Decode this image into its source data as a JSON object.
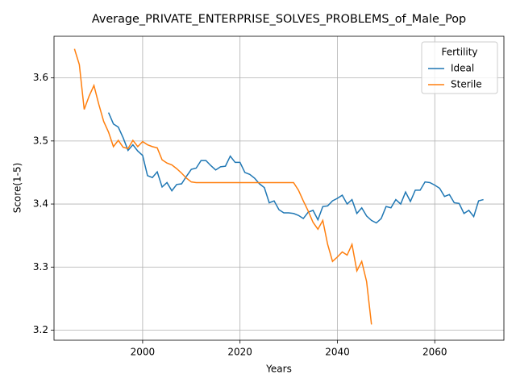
{
  "chart_data": {
    "type": "line",
    "title": "Average_PRIVATE_ENTERPRISE_SOLVES_PROBLEMS_of_Male_Pop",
    "x_label": "Years",
    "y_label": "Score(1-5)",
    "legend_title": "Fertility",
    "legend": "upper right",
    "grid": true,
    "xlim": [
      1981.8,
      2074.2
    ],
    "xticks": [
      2000,
      2020,
      2040,
      2060
    ],
    "ylim": [
      3.184,
      3.666
    ],
    "yticks": [
      3.2,
      3.3,
      3.4,
      3.5,
      3.6
    ],
    "series": [
      {
        "name": "Ideal",
        "color": "#1f77b4",
        "x": [
          1993,
          1994,
          1995,
          1996,
          1997,
          1998,
          1999,
          2000,
          2001,
          2002,
          2003,
          2004,
          2005,
          2006,
          2007,
          2008,
          2009,
          2010,
          2011,
          2012,
          2013,
          2014,
          2015,
          2016,
          2017,
          2018,
          2019,
          2020,
          2021,
          2022,
          2023,
          2024,
          2025,
          2026,
          2027,
          2028,
          2029,
          2030,
          2031,
          2032,
          2033,
          2034,
          2035,
          2036,
          2037,
          2038,
          2039,
          2040,
          2041,
          2042,
          2043,
          2044,
          2045,
          2046,
          2047,
          2048,
          2049,
          2050,
          2051,
          2052,
          2053,
          2054,
          2055,
          2056,
          2057,
          2058,
          2059,
          2060,
          2061,
          2062,
          2063,
          2064,
          2065,
          2066,
          2067,
          2068,
          2069,
          2070
        ],
        "values": [
          3.545,
          3.527,
          3.522,
          3.505,
          3.485,
          3.494,
          3.484,
          3.477,
          3.445,
          3.442,
          3.451,
          3.427,
          3.434,
          3.421,
          3.431,
          3.432,
          3.444,
          3.455,
          3.457,
          3.469,
          3.469,
          3.461,
          3.454,
          3.459,
          3.46,
          3.476,
          3.466,
          3.466,
          3.45,
          3.447,
          3.441,
          3.432,
          3.426,
          3.402,
          3.405,
          3.391,
          3.386,
          3.386,
          3.385,
          3.382,
          3.377,
          3.387,
          3.39,
          3.375,
          3.396,
          3.397,
          3.405,
          3.409,
          3.414,
          3.4,
          3.407,
          3.385,
          3.394,
          3.381,
          3.374,
          3.37,
          3.377,
          3.396,
          3.394,
          3.407,
          3.4,
          3.419,
          3.404,
          3.422,
          3.422,
          3.435,
          3.434,
          3.43,
          3.425,
          3.412,
          3.415,
          3.402,
          3.401,
          3.385,
          3.39,
          3.38,
          3.405,
          3.407
        ]
      },
      {
        "name": "Sterile",
        "color": "#ff7f0e",
        "x": [
          1986,
          1987,
          1988,
          1989,
          1990,
          1991,
          1992,
          1993,
          1994,
          1995,
          1996,
          1997,
          1998,
          1999,
          2000,
          2001,
          2002,
          2003,
          2004,
          2005,
          2006,
          2007,
          2008,
          2009,
          2010,
          2011,
          2012,
          2013,
          2014,
          2015,
          2016,
          2017,
          2018,
          2019,
          2020,
          2021,
          2022,
          2023,
          2024,
          2025,
          2026,
          2027,
          2028,
          2029,
          2030,
          2031,
          2032,
          2033,
          2034,
          2035,
          2036,
          2037,
          2038,
          2039,
          2040,
          2041,
          2042,
          2043,
          2044,
          2045,
          2046,
          2047
        ],
        "values": [
          3.646,
          3.621,
          3.55,
          3.571,
          3.588,
          3.558,
          3.531,
          3.514,
          3.491,
          3.501,
          3.49,
          3.488,
          3.501,
          3.491,
          3.499,
          3.494,
          3.491,
          3.489,
          3.47,
          3.465,
          3.462,
          3.456,
          3.449,
          3.441,
          3.435,
          3.434,
          3.434,
          3.434,
          3.434,
          3.434,
          3.434,
          3.434,
          3.434,
          3.434,
          3.434,
          3.434,
          3.434,
          3.434,
          3.434,
          3.434,
          3.434,
          3.434,
          3.434,
          3.434,
          3.434,
          3.434,
          3.422,
          3.405,
          3.389,
          3.371,
          3.36,
          3.374,
          3.336,
          3.309,
          3.316,
          3.324,
          3.319,
          3.336,
          3.294,
          3.309,
          3.277,
          3.209
        ]
      }
    ]
  }
}
